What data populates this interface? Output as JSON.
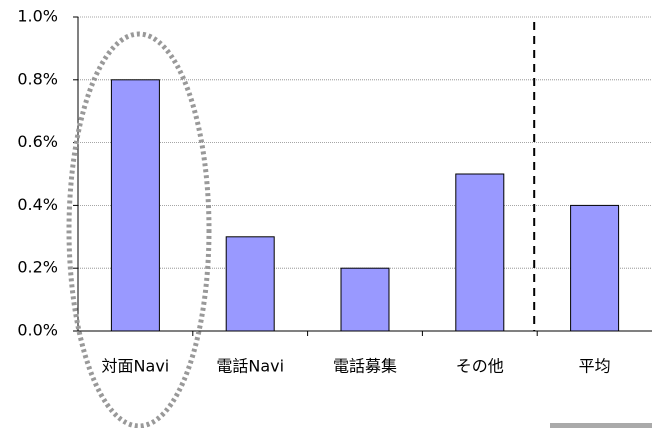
{
  "chart_data": {
    "type": "bar",
    "categories": [
      "対面Navi",
      "電話Navi",
      "電話募集",
      "その他",
      "平均"
    ],
    "values": [
      0.8,
      0.3,
      0.2,
      0.5,
      0.4
    ],
    "color": "#9999ff",
    "ylim": [
      0,
      1.0
    ],
    "yticks": [
      {
        "value": 0,
        "label": "0.0%"
      },
      {
        "value": 0.2,
        "label": "0.2%"
      },
      {
        "value": 0.4,
        "label": "0.4%"
      },
      {
        "value": 0.6,
        "label": "0.6%"
      },
      {
        "value": 0.8,
        "label": "0.8%"
      },
      {
        "value": 1.0,
        "label": "1.0%"
      }
    ],
    "grid": true
  }
}
